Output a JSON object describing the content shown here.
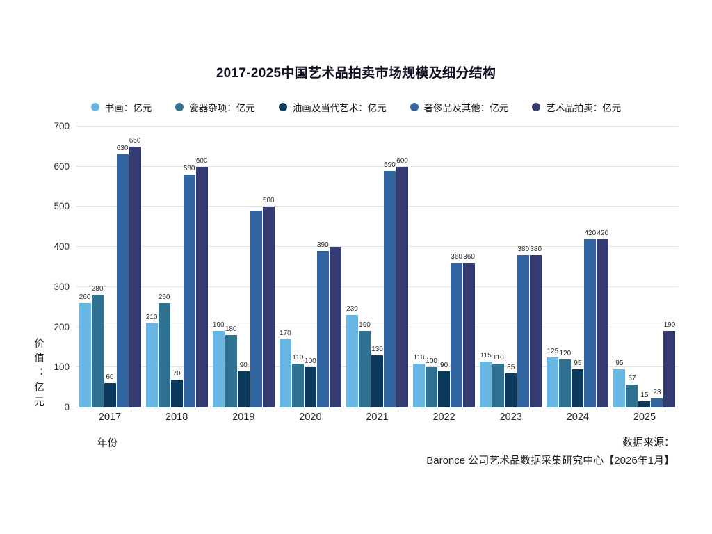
{
  "title": "2017-2025中国艺术品拍卖市场规模及细分结构",
  "chart_data": {
    "type": "bar",
    "title": "2017-2025中国艺术品拍卖市场规模及细分结构",
    "categories": [
      "2017",
      "2018",
      "2019",
      "2020",
      "2021",
      "2022",
      "2023",
      "2024",
      "2025"
    ],
    "series": [
      {
        "name": "书画：亿元",
        "color": "#67B7E5",
        "values": [
          260,
          210,
          190,
          170,
          230,
          110,
          115,
          125,
          95
        ]
      },
      {
        "name": "瓷器杂项：亿元",
        "color": "#2F7191",
        "values": [
          280,
          260,
          180,
          110,
          190,
          100,
          110,
          120,
          57
        ]
      },
      {
        "name": "油画及当代艺术：亿元",
        "color": "#0C3A5C",
        "values": [
          60,
          70,
          90,
          100,
          130,
          90,
          85,
          95,
          15
        ]
      },
      {
        "name": "奢侈品及其他：亿元",
        "color": "#32649F",
        "values": [
          630,
          580,
          490,
          390,
          590,
          360,
          380,
          420,
          23
        ]
      },
      {
        "name": "艺术品拍卖：亿元",
        "color": "#333C72",
        "values": [
          650,
          600,
          500,
          400,
          600,
          360,
          380,
          420,
          190
        ]
      }
    ],
    "hidden_value_labels": [
      {
        "series_index": 3,
        "category_index": 2
      },
      {
        "series_index": 4,
        "category_index": 3
      }
    ],
    "xlabel": "年份",
    "ylabel": "价值：亿元",
    "ylim": [
      0,
      700
    ],
    "yticks": [
      0,
      100,
      200,
      300,
      400,
      500,
      600,
      700
    ],
    "grid": true,
    "legend_position": "top"
  },
  "source": {
    "line1": "数据来源：",
    "line2": "Baronce 公司艺术品数据采集研究中心【2026年1月】"
  }
}
